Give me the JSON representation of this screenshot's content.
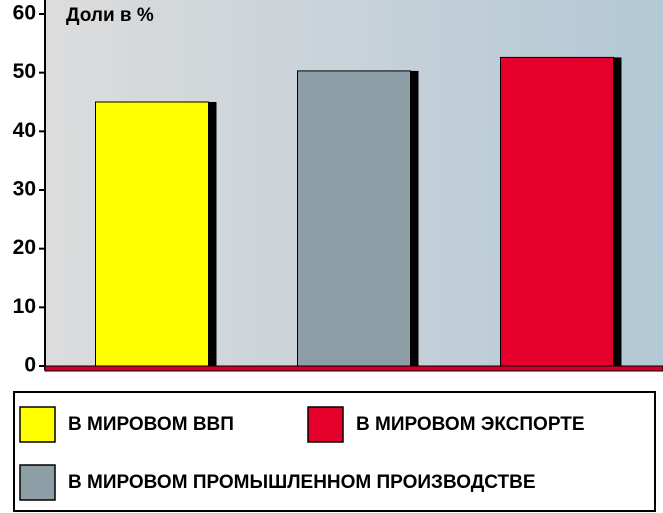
{
  "chart_data": {
    "type": "bar",
    "y_label": "Доли в %",
    "series": [
      {
        "name": "В МИРОВОМ ВВП",
        "color": "#ffff00",
        "values": [
          45
        ]
      },
      {
        "name": "В МИРОВОМ ПРОМЫШЛЕННОМ ПРОИЗВОДСТВЕ",
        "color": "#8e9ea6",
        "values": [
          50.3
        ]
      },
      {
        "name": "В МИРОВОМ ЭКСПОРТЕ",
        "color": "#e4002b",
        "values": [
          52.6
        ]
      }
    ],
    "ylim": [
      0,
      60
    ],
    "yticks": [
      0,
      10,
      20,
      30,
      40,
      50,
      60
    ],
    "grid": false
  }
}
